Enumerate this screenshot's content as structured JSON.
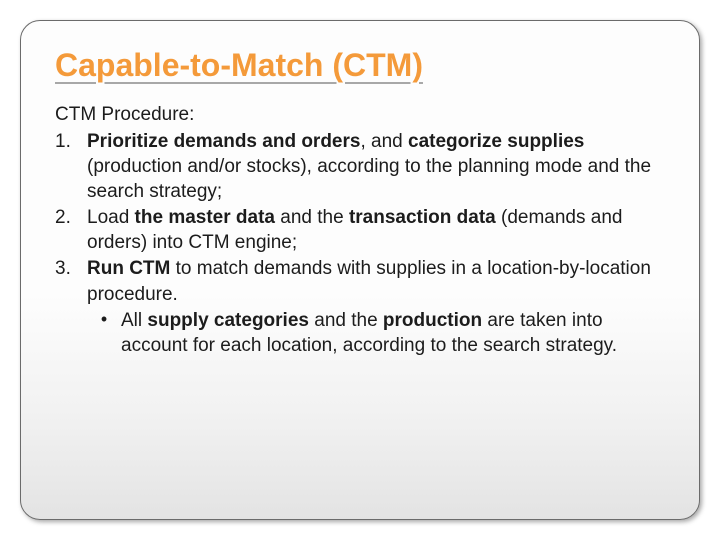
{
  "slide": {
    "title": "Capable-to-Match (CTM)",
    "intro": "CTM Procedure:",
    "items": [
      {
        "num": "1.",
        "parts": [
          {
            "t": "Prioritize demands and orders",
            "b": true
          },
          {
            "t": ", and ",
            "b": false
          },
          {
            "t": "categorize supplies",
            "b": true
          },
          {
            "t": " (production and/or stocks), according to the planning mode and the search strategy;",
            "b": false
          }
        ]
      },
      {
        "num": "2.",
        "parts": [
          {
            "t": "Load ",
            "b": false
          },
          {
            "t": "the master data ",
            "b": true
          },
          {
            "t": "and the ",
            "b": false
          },
          {
            "t": "transaction data",
            "b": true
          },
          {
            "t": " (demands and orders) into CTM engine;",
            "b": false
          }
        ]
      },
      {
        "num": "3.",
        "parts": [
          {
            "t": "Run CTM",
            "b": true
          },
          {
            "t": " to match demands with supplies in a location-by-location procedure.",
            "b": false
          }
        ],
        "sub": [
          {
            "bullet": "•",
            "parts": [
              {
                "t": "All ",
                "b": false
              },
              {
                "t": "supply categories ",
                "b": true
              },
              {
                "t": "and the ",
                "b": false
              },
              {
                "t": "production ",
                "b": true
              },
              {
                "t": "are taken into account for each location, according to the search strategy.",
                "b": false
              }
            ]
          }
        ]
      }
    ]
  },
  "style": {
    "title_color": "#f49a3a",
    "title_fontsize": 32,
    "body_fontsize": 19,
    "body_color": "#1c1c1c",
    "border_color": "#6b6b6b",
    "border_radius": 20,
    "bg_gradient_top": "#fdfdfd",
    "bg_gradient_bottom": "#e3e3e3"
  }
}
